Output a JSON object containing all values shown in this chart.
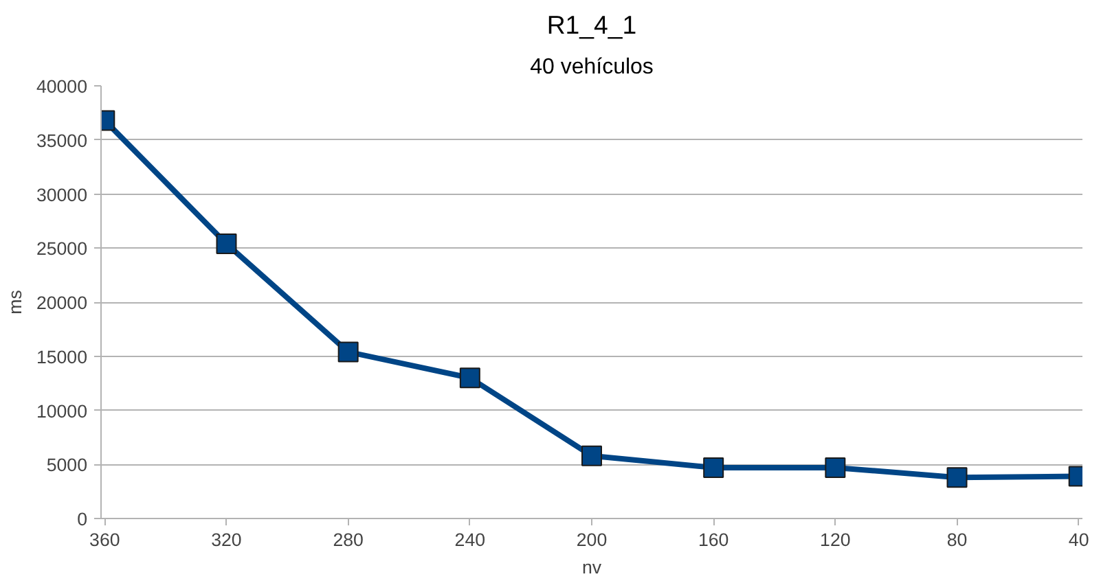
{
  "chart_data": {
    "type": "line",
    "title": "R1_4_1",
    "subtitle": "40 vehículos",
    "xlabel": "nv",
    "ylabel": "ms",
    "categories": [
      "360",
      "320",
      "280",
      "240",
      "200",
      "160",
      "120",
      "80",
      "40"
    ],
    "series": [
      {
        "color": "#004586",
        "values": [
          36800,
          25400,
          15400,
          13000,
          5800,
          4700,
          4700,
          3800,
          3900
        ]
      }
    ],
    "ylim": [
      0,
      40000
    ],
    "yticks": [
      0,
      5000,
      10000,
      15000,
      20000,
      25000,
      30000,
      35000,
      40000
    ],
    "grid": "y",
    "marker": "square",
    "line_style": "solid"
  }
}
